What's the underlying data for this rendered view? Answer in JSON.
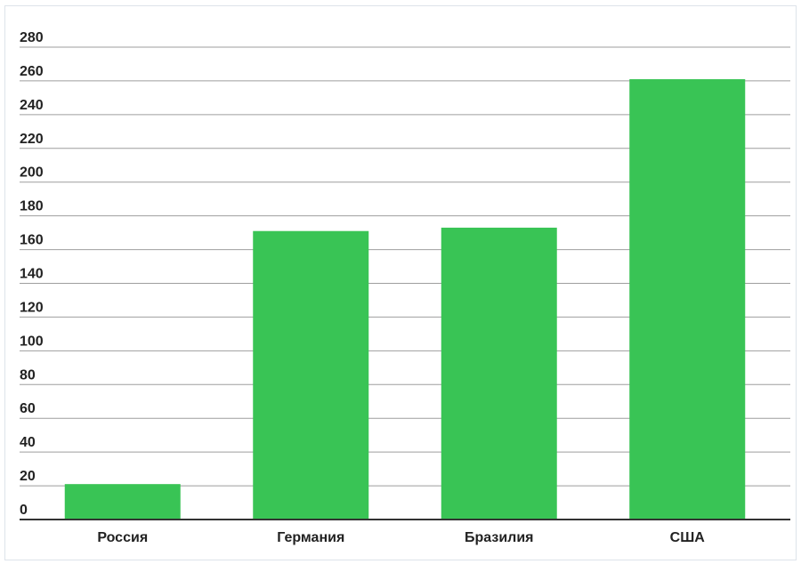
{
  "chart_data": {
    "type": "bar",
    "categories": [
      "Россия",
      "Германия",
      "Бразилия",
      "США"
    ],
    "values": [
      21,
      171,
      173,
      261
    ],
    "title": "",
    "xlabel": "",
    "ylabel": "",
    "ylim": [
      0,
      280
    ],
    "yticks": [
      "0",
      "20",
      "40",
      "60",
      "80",
      "100",
      "120",
      "140",
      "160",
      "180",
      "200",
      "220",
      "240",
      "260",
      "280"
    ],
    "grid": true,
    "bar_color": "#39c455",
    "gridline_color": "#9e9e9e",
    "baseline_color": "#333333"
  }
}
